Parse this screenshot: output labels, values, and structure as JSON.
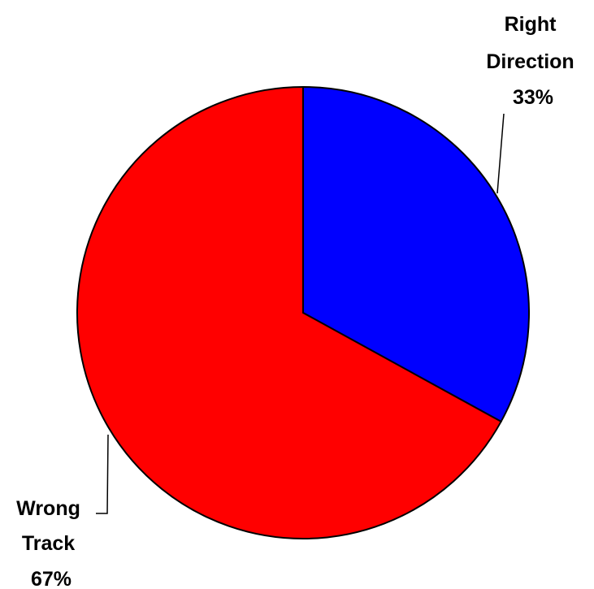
{
  "chart_data": {
    "type": "pie",
    "slices": [
      {
        "name": "Right Direction",
        "label_lines": [
          "Right",
          "Direction"
        ],
        "value": 33,
        "value_label": "33%",
        "color": "#0000ff"
      },
      {
        "name": "Wrong Track",
        "label_lines": [
          "Wrong",
          "Track"
        ],
        "value": 67,
        "value_label": "67%",
        "color": "#ff0000"
      }
    ],
    "start_angle": "12 o'clock",
    "direction": "clockwise"
  }
}
